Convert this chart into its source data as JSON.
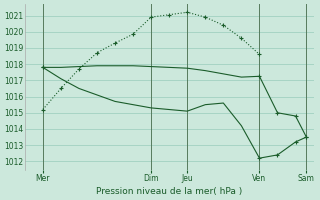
{
  "background_color": "#cce8dc",
  "grid_color": "#99ccbb",
  "line_color": "#1a5c2a",
  "title": "Pression niveau de la mer( hPa )",
  "ylim": [
    1011.5,
    1021.7
  ],
  "yticks": [
    1012,
    1013,
    1014,
    1015,
    1016,
    1017,
    1018,
    1019,
    1020,
    1021
  ],
  "xlim": [
    0,
    8.0
  ],
  "vline_positions": [
    0.5,
    3.5,
    4.5,
    6.5,
    7.8
  ],
  "xtick_positions": [
    0.5,
    3.5,
    4.5,
    6.5,
    7.8
  ],
  "xtick_labels": [
    "Mer",
    "Dim",
    "Jeu",
    "Ven",
    "Sam"
  ],
  "line1_x": [
    0.5,
    1.0,
    1.5,
    2.0,
    2.5,
    3.0,
    3.5,
    4.0,
    4.5,
    5.0,
    5.5,
    6.0,
    6.5
  ],
  "line1_y": [
    1015.2,
    1016.5,
    1017.7,
    1018.7,
    1019.3,
    1019.85,
    1020.9,
    1021.05,
    1021.2,
    1020.9,
    1020.4,
    1019.6,
    1018.6
  ],
  "line2_x": [
    0.5,
    1.0,
    1.5,
    2.0,
    2.5,
    3.0,
    3.5,
    4.0,
    4.5,
    5.0,
    5.5,
    6.0,
    6.5,
    7.0,
    7.5,
    7.8
  ],
  "line2_y": [
    1017.8,
    1017.8,
    1017.85,
    1017.9,
    1017.9,
    1017.9,
    1017.85,
    1017.8,
    1017.75,
    1017.6,
    1017.4,
    1017.2,
    1017.25,
    1015.0,
    1014.8,
    1013.5
  ],
  "line3_x": [
    0.5,
    1.0,
    1.5,
    2.0,
    2.5,
    3.0,
    3.5,
    4.0,
    4.5,
    5.0,
    5.5,
    6.0,
    6.5,
    7.0,
    7.5,
    7.8
  ],
  "line3_y": [
    1017.8,
    1017.1,
    1016.5,
    1016.1,
    1015.7,
    1015.5,
    1015.3,
    1015.2,
    1015.1,
    1015.5,
    1015.6,
    1014.2,
    1012.2,
    1012.4,
    1013.2,
    1013.5
  ],
  "markers_line1_x": [
    0.5,
    1.0,
    1.5,
    2.0,
    2.5,
    3.0,
    3.5,
    4.0,
    4.5,
    5.0,
    5.5,
    6.0,
    6.5
  ],
  "markers_line1_y": [
    1015.2,
    1016.5,
    1017.7,
    1018.7,
    1019.3,
    1019.85,
    1020.9,
    1021.05,
    1021.2,
    1020.9,
    1020.4,
    1019.6,
    1018.6
  ],
  "markers_line2_x": [
    0.5,
    6.5,
    7.0,
    7.5,
    7.8
  ],
  "markers_line2_y": [
    1017.8,
    1017.25,
    1015.0,
    1014.8,
    1013.5
  ],
  "markers_line3_x": [
    0.5,
    6.5,
    7.0,
    7.5,
    7.8
  ],
  "markers_line3_y": [
    1017.8,
    1012.2,
    1012.4,
    1013.2,
    1013.5
  ]
}
